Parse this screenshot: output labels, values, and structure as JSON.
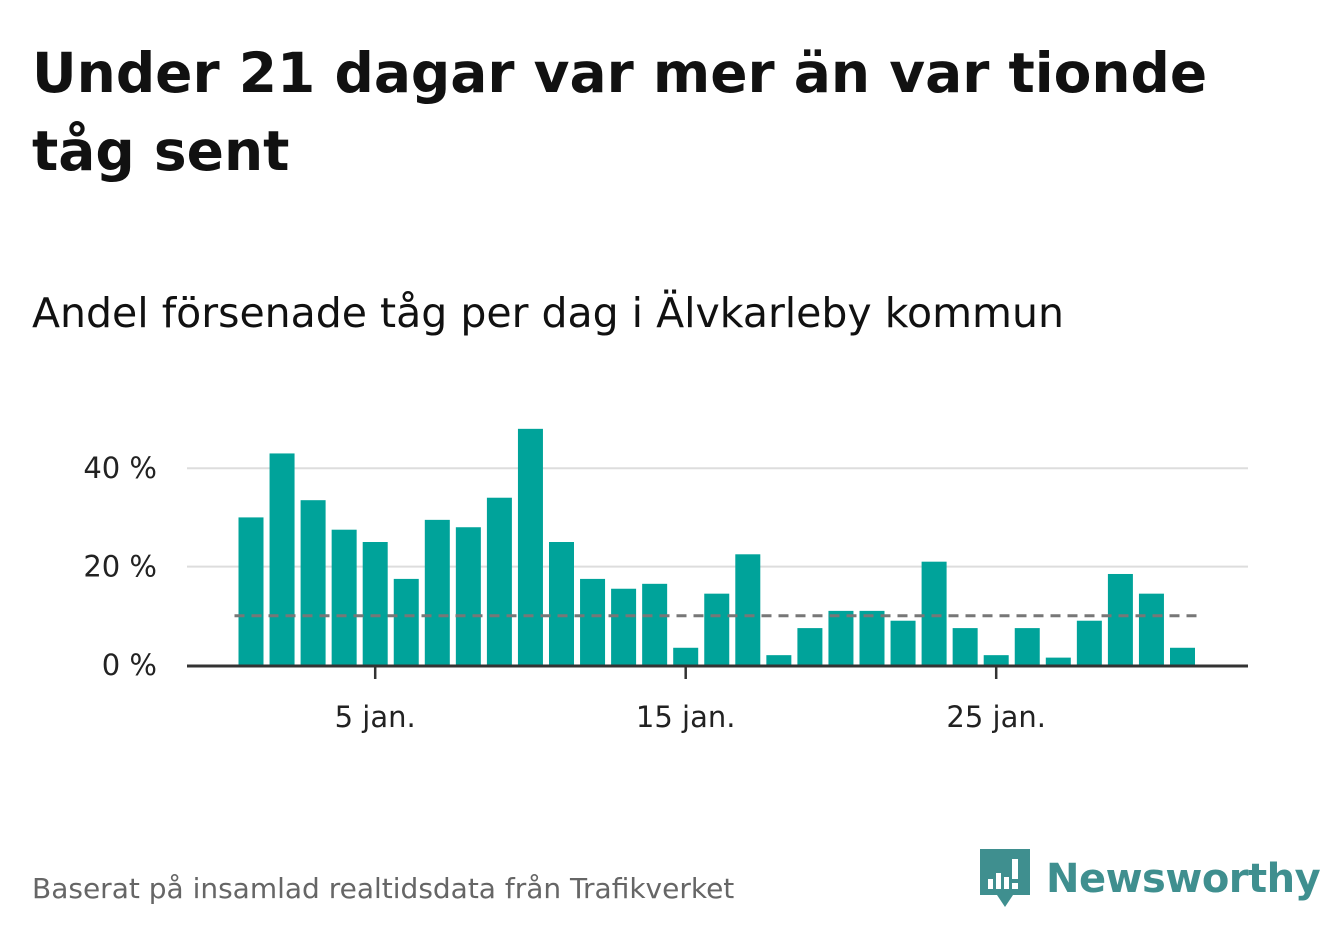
{
  "title": "Under 21 dagar var mer än var tionde tåg sent",
  "subtitle": "Andel försenade tåg per dag i Älvkarleby kommun",
  "footer": "Baserat på insamlad realtidsdata från Trafikverket",
  "brand": {
    "name": "Newsworthy",
    "color": "#3f8f8f",
    "icon": "bar-chart-speech-bubble-icon"
  },
  "colors": {
    "bar": "#00a39a",
    "reference_line": "#777777",
    "grid": "#dddddd",
    "axis": "#333333"
  },
  "chart_data": {
    "type": "bar",
    "x": [
      1,
      2,
      3,
      4,
      5,
      6,
      7,
      8,
      9,
      10,
      11,
      12,
      13,
      14,
      15,
      16,
      17,
      18,
      19,
      20,
      21,
      22,
      23,
      24,
      25,
      26,
      27,
      28,
      29,
      30,
      31
    ],
    "values": [
      30,
      43,
      33.5,
      27.5,
      25,
      17.5,
      29.5,
      28,
      34,
      48,
      25,
      17.5,
      15.5,
      16.5,
      3.5,
      14.5,
      22.5,
      2,
      7.5,
      11,
      11,
      9,
      21,
      7.5,
      2,
      7.5,
      1.5,
      9,
      18.5,
      14.5,
      3.5
    ],
    "reference_line": 10,
    "ylim": [
      0,
      50
    ],
    "y_ticks": [
      0,
      20,
      40
    ],
    "y_tick_labels": [
      "0 %",
      "20 %",
      "40 %"
    ],
    "x_ticks": [
      5,
      15,
      25
    ],
    "x_tick_labels": [
      "5 jan.",
      "15 jan.",
      "25 jan."
    ],
    "grid": true
  }
}
